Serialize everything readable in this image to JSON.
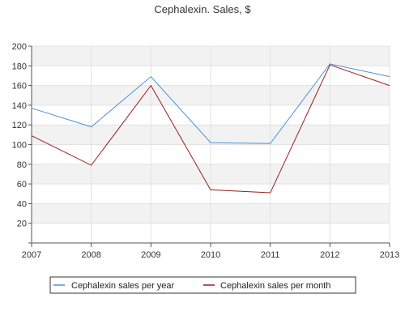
{
  "chart_data": {
    "type": "line",
    "title": "Cephalexin. Sales, $",
    "xlabel": "",
    "ylabel": "",
    "x": [
      "2007",
      "2008",
      "2009",
      "2010",
      "2011",
      "2012",
      "2013"
    ],
    "ylim": [
      0,
      200
    ],
    "yticks": [
      "20",
      "40",
      "60",
      "80",
      "100",
      "120",
      "140",
      "160",
      "180",
      "200"
    ],
    "series": [
      {
        "name": "Cephalexin sales per year",
        "color": "#4a90d9",
        "values": [
          137,
          118,
          169,
          102,
          101,
          182,
          169
        ]
      },
      {
        "name": "Cephalexin sales per month",
        "color": "#9b1c1c",
        "values": [
          109,
          79,
          160,
          54,
          51,
          181,
          160
        ]
      }
    ],
    "grid": true,
    "band_colors": [
      "#f2f2f2",
      "#ffffff"
    ],
    "legend_position": "bottom"
  }
}
